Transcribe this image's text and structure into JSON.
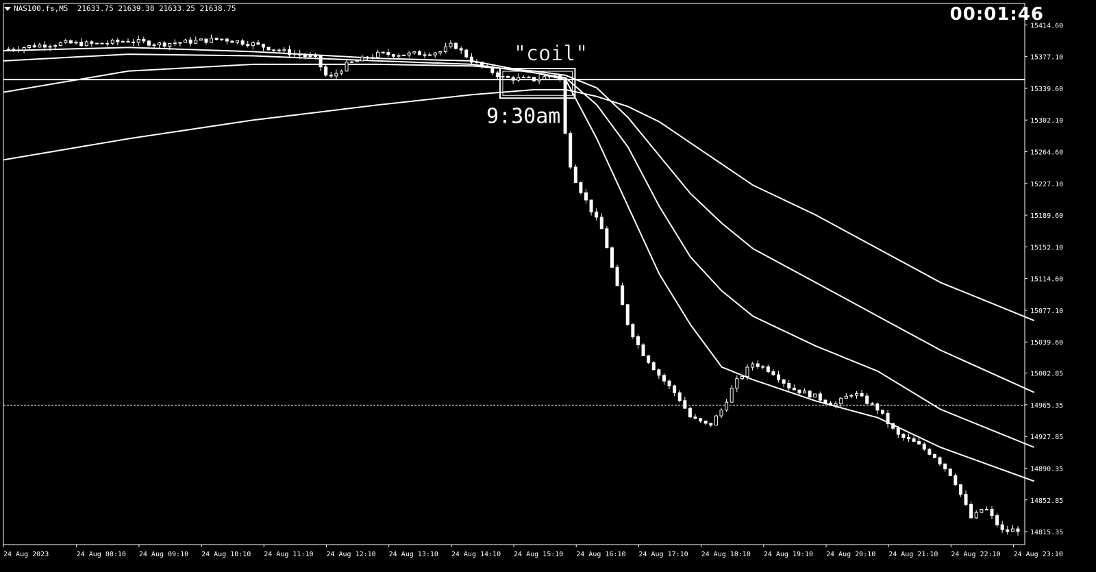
{
  "window": {
    "symbol": "NAS100.fs,M5",
    "ohlc": "21633.75 21639.38 21633.25 21638.75",
    "timer": "00:01:46"
  },
  "chart_data": {
    "type": "line",
    "title": "",
    "price_ticks": [
      "15414.60",
      "15377.10",
      "15339.60",
      "15302.10",
      "15264.60",
      "15227.10",
      "15189.60",
      "15152.10",
      "15114.60",
      "15077.10",
      "15039.60",
      "15002.85",
      "14965.35",
      "14927.85",
      "14890.35",
      "14852.85",
      "14815.35"
    ],
    "time_ticks": [
      "24 Aug 2023",
      "24 Aug 08:10",
      "24 Aug 09:10",
      "24 Aug 10:10",
      "24 Aug 11:10",
      "24 Aug 12:10",
      "24 Aug 13:10",
      "24 Aug 14:10",
      "24 Aug 15:10",
      "24 Aug 16:10",
      "24 Aug 17:10",
      "24 Aug 18:10",
      "24 Aug 19:10",
      "24 Aug 20:10",
      "24 Aug 21:10",
      "24 Aug 22:10",
      "24 Aug 23:10"
    ],
    "ylim": [
      14800,
      15440
    ],
    "grid": false,
    "price_series": {
      "hours": [
        7.0,
        7.5,
        8.0,
        8.5,
        9.0,
        9.5,
        10.0,
        10.5,
        11.0,
        11.5,
        12.0,
        12.2,
        12.5,
        13.0,
        13.5,
        14.0,
        14.2,
        14.5,
        15.0,
        15.5,
        15.9,
        16.0,
        16.1,
        16.3,
        16.6,
        16.8,
        17.0,
        17.2,
        17.5,
        17.8,
        18.0,
        18.3,
        18.5,
        18.7,
        19.0,
        19.3,
        19.6,
        20.0,
        20.3,
        20.6,
        21.0,
        21.3,
        21.6,
        21.9,
        22.2,
        22.5,
        22.7,
        23.0,
        23.2
      ],
      "close": [
        15385,
        15390,
        15393,
        15392,
        15396,
        15392,
        15395,
        15398,
        15392,
        15383,
        15375,
        15350,
        15368,
        15380,
        15380,
        15383,
        15392,
        15372,
        15352,
        15350,
        15357,
        15280,
        15240,
        15210,
        15170,
        15110,
        15060,
        15030,
        15000,
        14975,
        14950,
        14940,
        14960,
        14990,
        15015,
        15005,
        14985,
        14975,
        14965,
        14980,
        14960,
        14930,
        14920,
        14905,
        14880,
        14830,
        14845,
        14815,
        14818
      ]
    },
    "moving_averages": [
      {
        "hours": [
          7.0,
          9.0,
          11.0,
          13.0,
          14.5,
          15.5,
          16.0,
          16.5,
          17.0,
          17.5,
          18.0,
          18.5,
          19.0,
          20.0,
          21.0,
          22.0,
          23.5
        ],
        "values": [
          15384,
          15388,
          15383,
          15375,
          15372,
          15358,
          15350,
          15280,
          15200,
          15120,
          15060,
          15010,
          14995,
          14970,
          14950,
          14915,
          14875
        ]
      },
      {
        "hours": [
          7.0,
          9.0,
          11.0,
          13.0,
          14.5,
          15.5,
          16.0,
          16.5,
          17.0,
          17.5,
          18.0,
          18.5,
          19.0,
          20.0,
          21.0,
          22.0,
          23.5
        ],
        "values": [
          15372,
          15380,
          15378,
          15372,
          15368,
          15358,
          15352,
          15320,
          15270,
          15200,
          15140,
          15100,
          15070,
          15035,
          15005,
          14960,
          14915
        ]
      },
      {
        "hours": [
          7.0,
          9.0,
          11.0,
          13.0,
          14.5,
          15.5,
          16.0,
          16.5,
          17.0,
          17.5,
          18.0,
          18.5,
          19.0,
          20.0,
          21.0,
          22.0,
          23.5
        ],
        "values": [
          15335,
          15360,
          15368,
          15368,
          15366,
          15360,
          15355,
          15340,
          15305,
          15260,
          15215,
          15180,
          15150,
          15110,
          15070,
          15030,
          14980
        ]
      },
      {
        "hours": [
          7.0,
          9.0,
          11.0,
          13.0,
          14.5,
          15.5,
          16.0,
          16.5,
          17.0,
          17.5,
          18.0,
          18.5,
          19.0,
          20.0,
          21.0,
          22.0,
          23.5
        ],
        "values": [
          15255,
          15280,
          15302,
          15320,
          15332,
          15338,
          15338,
          15330,
          15318,
          15300,
          15275,
          15250,
          15225,
          15190,
          15150,
          15110,
          15065
        ]
      }
    ],
    "horizontal_levels": [
      {
        "price": 15350,
        "style": "solid"
      },
      {
        "price": 14965,
        "style": "dashed"
      }
    ],
    "annotations": {
      "coil_label": "\"coil\"",
      "time_label": "9:30am",
      "coil_box": {
        "h_start": 14.95,
        "h_end": 16.15,
        "p_top": 15363,
        "p_bottom": 15328
      }
    }
  }
}
